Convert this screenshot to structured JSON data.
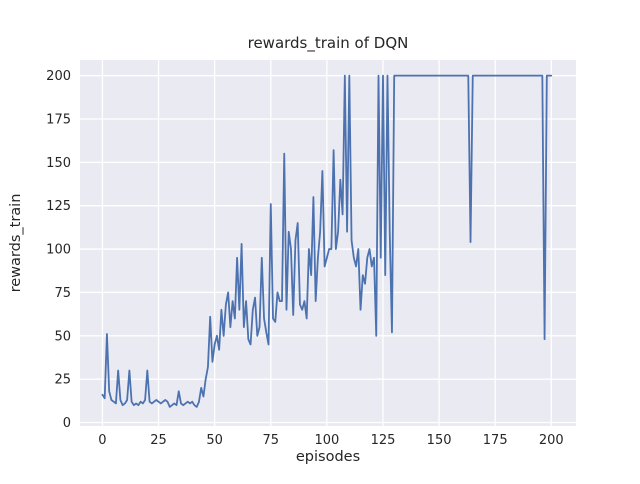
{
  "figure": {
    "title": "rewards_train of DQN",
    "xlabel": "episodes",
    "ylabel": "rewards_train"
  },
  "chart_data": {
    "type": "line",
    "title": "rewards_train of DQN",
    "xlabel": "episodes",
    "ylabel": "rewards_train",
    "x_ticks": [
      0,
      25,
      50,
      75,
      100,
      125,
      150,
      175,
      200
    ],
    "y_ticks": [
      0,
      25,
      50,
      75,
      100,
      125,
      150,
      175,
      200
    ],
    "xlim": [
      -10,
      211
    ],
    "ylim": [
      -2,
      209
    ],
    "grid": true,
    "legend_position": "none",
    "style": {
      "plot_background": "#eaeaf2",
      "grid_color": "#ffffff",
      "line_color": "#4c72b0",
      "text_color": "#262626",
      "figure_background": "#ffffff"
    },
    "series": [
      {
        "name": "rewards_train",
        "x_start": 0,
        "x_step": 1,
        "values": [
          16,
          14,
          51,
          18,
          13,
          12,
          11,
          30,
          13,
          10,
          11,
          13,
          30,
          12,
          10,
          11,
          10,
          12,
          11,
          13,
          30,
          12,
          11,
          12,
          13,
          12,
          11,
          12,
          13,
          12,
          9,
          10,
          11,
          10,
          18,
          11,
          10,
          11,
          12,
          11,
          12,
          10,
          9,
          12,
          20,
          15,
          25,
          32,
          61,
          35,
          45,
          50,
          42,
          65,
          50,
          68,
          75,
          55,
          70,
          60,
          95,
          65,
          103,
          55,
          70,
          48,
          45,
          65,
          72,
          50,
          55,
          95,
          60,
          52,
          45,
          126,
          60,
          58,
          75,
          70,
          70,
          155,
          65,
          110,
          100,
          62,
          105,
          115,
          68,
          65,
          70,
          60,
          100,
          85,
          130,
          70,
          95,
          110,
          145,
          90,
          95,
          100,
          100,
          157,
          100,
          110,
          140,
          120,
          200,
          110,
          200,
          105,
          95,
          90,
          100,
          65,
          85,
          80,
          95,
          100,
          90,
          95,
          50,
          200,
          95,
          200,
          85,
          200,
          110,
          52,
          200,
          200,
          200,
          200,
          200,
          200,
          200,
          200,
          200,
          200,
          200,
          200,
          200,
          200,
          200,
          200,
          200,
          200,
          200,
          200,
          200,
          200,
          200,
          200,
          200,
          200,
          200,
          200,
          200,
          200,
          200,
          200,
          200,
          200,
          104,
          200,
          200,
          200,
          200,
          200,
          200,
          200,
          200,
          200,
          200,
          200,
          200,
          200,
          200,
          200,
          200,
          200,
          200,
          200,
          200,
          200,
          200,
          200,
          200,
          200,
          200,
          200,
          200,
          200,
          200,
          200,
          200,
          48,
          200,
          200,
          200
        ]
      }
    ]
  }
}
